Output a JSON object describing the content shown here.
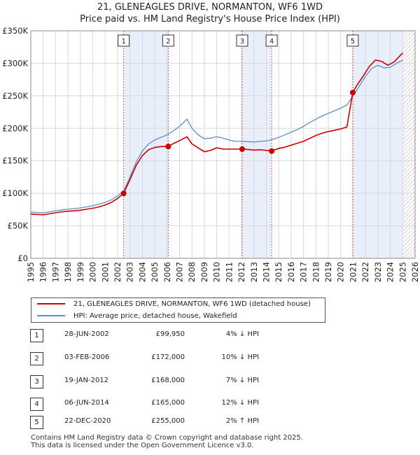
{
  "header": {
    "title_line1": "21, GLENEAGLES DRIVE, NORMANTON, WF6 1WD",
    "title_line2": "Price paid vs. HM Land Registry's House Price Index (HPI)"
  },
  "chart_data": {
    "type": "line",
    "title": "21, GLENEAGLES DRIVE, NORMANTON, WF6 1WD — Price paid vs. HM Land Registry's House Price Index (HPI)",
    "xlim": [
      1995,
      2026
    ],
    "ylim": [
      0,
      350000
    ],
    "x_ticks": [
      1995,
      1996,
      1997,
      1998,
      1999,
      2000,
      2001,
      2002,
      2003,
      2004,
      2005,
      2006,
      2007,
      2008,
      2009,
      2010,
      2011,
      2012,
      2013,
      2014,
      2015,
      2016,
      2017,
      2018,
      2019,
      2020,
      2021,
      2022,
      2023,
      2024,
      2025,
      2026
    ],
    "y_ticks": [
      0,
      50000,
      100000,
      150000,
      200000,
      250000,
      300000,
      350000
    ],
    "y_tick_labels": [
      "£0",
      "£50K",
      "£100K",
      "£150K",
      "£200K",
      "£250K",
      "£300K",
      "£350K"
    ],
    "grid": true,
    "data_end_year": 2025.0,
    "colors": {
      "property": "#cc0000",
      "hpi": "#5b8fc9",
      "shade": "#e8eefa",
      "vline": "#e05050",
      "hatch": "#aaaaaa"
    },
    "series": [
      {
        "name": "21, GLENEAGLES DRIVE, NORMANTON, WF6 1WD (detached house)",
        "color": "#cc0000",
        "x": [
          1995,
          1995.5,
          1996,
          1996.5,
          1997,
          1997.5,
          1998,
          1998.5,
          1999,
          1999.5,
          2000,
          2000.5,
          2001,
          2001.5,
          2002,
          2002.49,
          2003,
          2003.5,
          2004,
          2004.5,
          2005,
          2005.5,
          2006.09,
          2006.5,
          2007,
          2007.6,
          2008,
          2008.5,
          2009,
          2009.5,
          2010,
          2010.5,
          2011,
          2011.5,
          2012.05,
          2012.5,
          2013,
          2013.5,
          2014.43,
          2015,
          2015.5,
          2016,
          2016.5,
          2017,
          2017.5,
          2018,
          2018.5,
          2019,
          2019.5,
          2020,
          2020.5,
          2020.97,
          2021.3,
          2021.8,
          2022.3,
          2022.8,
          2023.3,
          2023.8,
          2024.3,
          2024.7,
          2025
        ],
        "values": [
          68000,
          67500,
          67000,
          68500,
          70000,
          71500,
          72500,
          73000,
          74000,
          75500,
          77000,
          79000,
          82000,
          86000,
          92000,
          99950,
          121000,
          143000,
          158000,
          167000,
          170500,
          172000,
          172000,
          176500,
          181000,
          187000,
          176000,
          170000,
          164000,
          166000,
          170000,
          168000,
          168000,
          168000,
          168000,
          167500,
          166500,
          167000,
          165000,
          169000,
          171000,
          174000,
          177000,
          180000,
          184500,
          189000,
          192500,
          195000,
          197000,
          199000,
          202000,
          255000,
          266000,
          280000,
          295000,
          305000,
          303000,
          297000,
          302000,
          310000,
          316000
        ]
      },
      {
        "name": "HPI: Average price, detached house, Wakefield",
        "color": "#5b8fc9",
        "x": [
          1995,
          1995.5,
          1996,
          1996.5,
          1997,
          1997.5,
          1998,
          1998.5,
          1999,
          1999.5,
          2000,
          2000.5,
          2001,
          2001.5,
          2002,
          2002.5,
          2003,
          2003.5,
          2004,
          2004.5,
          2005,
          2005.5,
          2006,
          2006.5,
          2007,
          2007.6,
          2008,
          2008.5,
          2009,
          2009.5,
          2010,
          2010.5,
          2011,
          2011.5,
          2012,
          2012.5,
          2013,
          2013.5,
          2014,
          2014.5,
          2015,
          2015.5,
          2016,
          2016.5,
          2017,
          2017.5,
          2018,
          2018.5,
          2019,
          2019.5,
          2020,
          2020.5,
          2021,
          2021.5,
          2022,
          2022.5,
          2023,
          2023.5,
          2024,
          2024.5,
          2025
        ],
        "values": [
          71000,
          70500,
          70000,
          71500,
          73000,
          74500,
          75500,
          76500,
          77500,
          79000,
          81000,
          83000,
          86000,
          90000,
          96000,
          104000,
          125000,
          148000,
          165000,
          176000,
          182000,
          186000,
          190000,
          196000,
          203000,
          214000,
          200000,
          190000,
          184000,
          185000,
          187000,
          185000,
          182000,
          180000,
          180000,
          179500,
          179000,
          180000,
          180500,
          183000,
          186000,
          190000,
          194000,
          198000,
          203000,
          209000,
          214000,
          219000,
          223000,
          227000,
          231000,
          236000,
          250000,
          265000,
          280000,
          292000,
          297000,
          293000,
          294000,
          300000,
          305000
        ]
      }
    ],
    "transactions": [
      {
        "num": "1",
        "year": 2002.49,
        "price": 99950,
        "date": "28-JUN-2002",
        "price_label": "£99,950",
        "hpi_label": "4% ↓ HPI"
      },
      {
        "num": "2",
        "year": 2006.09,
        "price": 172000,
        "date": "03-FEB-2006",
        "price_label": "£172,000",
        "hpi_label": "10% ↓ HPI"
      },
      {
        "num": "3",
        "year": 2012.05,
        "price": 168000,
        "date": "19-JAN-2012",
        "price_label": "£168,000",
        "hpi_label": "7% ↓ HPI"
      },
      {
        "num": "4",
        "year": 2014.43,
        "price": 165000,
        "date": "06-JUN-2014",
        "price_label": "£165,000",
        "hpi_label": "12% ↓ HPI"
      },
      {
        "num": "5",
        "year": 2020.97,
        "price": 255000,
        "date": "22-DEC-2020",
        "price_label": "£255,000",
        "hpi_label": "2% ↑ HPI"
      }
    ]
  },
  "legend": {
    "property_label": "21, GLENEAGLES DRIVE, NORMANTON, WF6 1WD (detached house)",
    "hpi_label": "HPI: Average price, detached house, Wakefield"
  },
  "footer": {
    "line1": "Contains HM Land Registry data © Crown copyright and database right 2025.",
    "line2": "This data is licensed under the Open Government Licence v3.0."
  }
}
